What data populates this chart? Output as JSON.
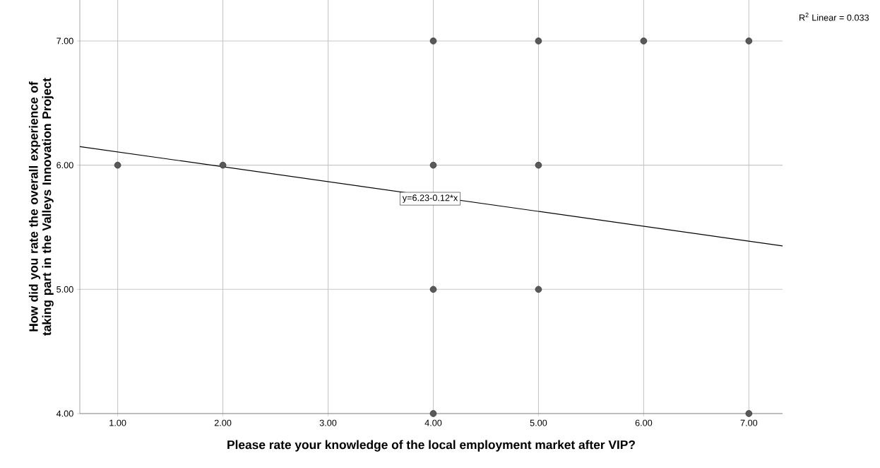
{
  "chart_data": {
    "type": "scatter",
    "xlabel": "Please rate your knowledge of the local employment market after VIP?",
    "ylabel": "How did you rate the overall experience of taking part in the Valleys Innovation Project",
    "xlim": [
      0.64,
      7.32
    ],
    "ylim": [
      4,
      7.33
    ],
    "xticks": [
      {
        "value": 1,
        "label": "1.00"
      },
      {
        "value": 2,
        "label": "2.00"
      },
      {
        "value": 3,
        "label": "3.00"
      },
      {
        "value": 4,
        "label": "4.00"
      },
      {
        "value": 5,
        "label": "5.00"
      },
      {
        "value": 6,
        "label": "6.00"
      },
      {
        "value": 7,
        "label": "7.00"
      }
    ],
    "yticks": [
      {
        "value": 4,
        "label": "4.00"
      },
      {
        "value": 5,
        "label": "5.00"
      },
      {
        "value": 6,
        "label": "6.00"
      },
      {
        "value": 7,
        "label": "7.00"
      }
    ],
    "grid": true,
    "series": [
      {
        "color": "#595959",
        "marker": "circle",
        "x": [
          1,
          2,
          4,
          4,
          4,
          4,
          5,
          5,
          5,
          6,
          7,
          7
        ],
        "values": [
          6,
          6,
          7,
          6,
          5,
          4,
          7,
          6,
          5,
          7,
          7,
          4
        ]
      },
      {
        "type": "line",
        "color": "#000000",
        "marker": "none",
        "line_style": "solid",
        "x": [
          0.64,
          7.32
        ],
        "values": [
          6.15,
          5.35
        ]
      }
    ],
    "annotations": [
      {
        "text": "y=6.23-0.12*x",
        "x": 3.97,
        "y": 5.73
      },
      "R$^{2}$ Linear = 0.033"
    ]
  }
}
